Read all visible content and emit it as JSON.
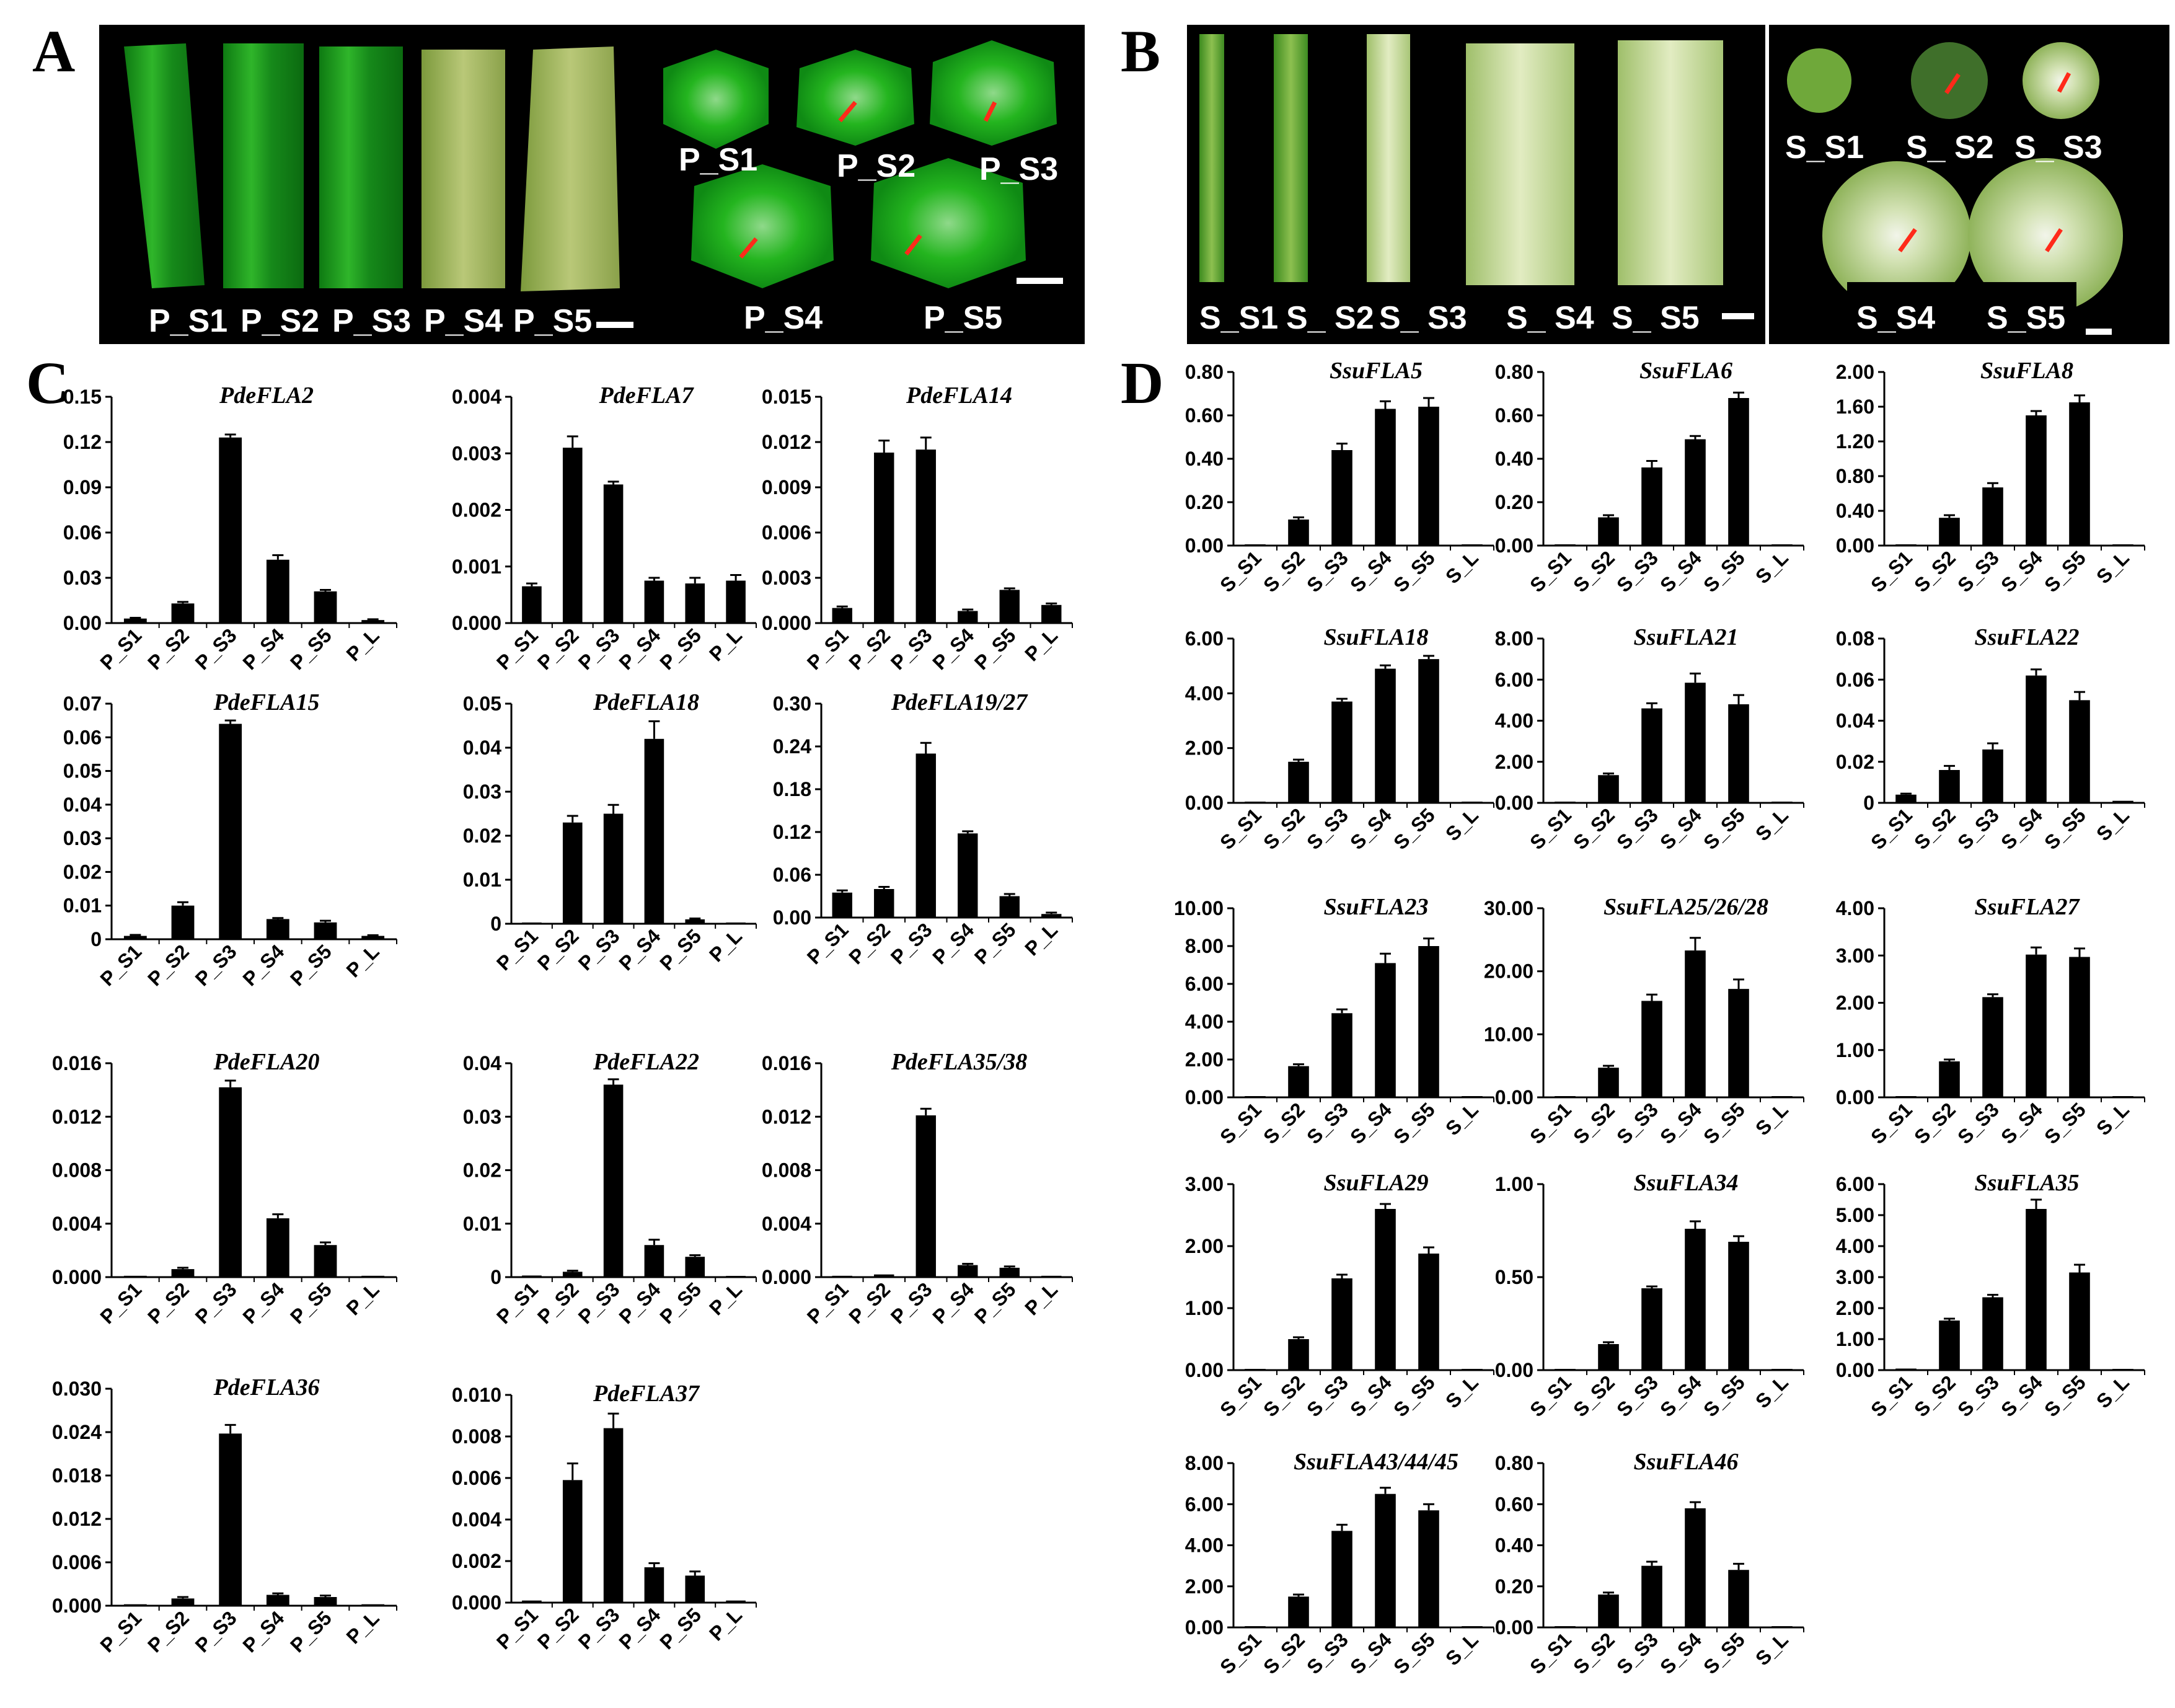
{
  "panels": {
    "A": {
      "letter": "A",
      "stem_labels": [
        "P_S1",
        "P_S2",
        "P_S3",
        "P_S4",
        "P_S5"
      ],
      "section_labels": [
        "P_S1",
        "P_S2",
        "P_S3",
        "P_S4",
        "P_S5"
      ]
    },
    "B": {
      "letter": "B",
      "stem_labels": [
        "S_S1",
        "S_ S2",
        "S_ S3",
        "S_ S4",
        "S_ S5"
      ],
      "section_labels": [
        "S_S1",
        "S_ S2",
        "S_ S3",
        "S_S4",
        "S_S5"
      ]
    },
    "C": {
      "letter": "C"
    },
    "D": {
      "letter": "D"
    }
  },
  "colors": {
    "bar": "#000000",
    "photo_background": "#000000",
    "poplar_green": "#1fa51f",
    "willow_green": "#c8dca0",
    "arrow": "#ff2a1a"
  },
  "chart_data": [
    {
      "panel": "C",
      "type": "bar",
      "title": "PdeFLA2",
      "categories": [
        "P_S1",
        "P_S2",
        "P_S3",
        "P_S4",
        "P_S5",
        "P_L"
      ],
      "values": [
        0.003,
        0.013,
        0.123,
        0.042,
        0.021,
        0.002
      ],
      "errors": [
        0.0005,
        0.001,
        0.002,
        0.003,
        0.001,
        0.0005
      ],
      "yticks": [
        "0.00",
        "0.03",
        "0.06",
        "0.09",
        "0.12",
        "0.15"
      ],
      "ylim": [
        0,
        0.15
      ]
    },
    {
      "panel": "C",
      "type": "bar",
      "title": "PdeFLA7",
      "categories": [
        "P_S1",
        "P_S2",
        "P_S3",
        "P_S4",
        "P_S5",
        "P_L"
      ],
      "values": [
        0.00065,
        0.0031,
        0.00245,
        0.00075,
        0.0007,
        0.00075
      ],
      "errors": [
        5e-05,
        0.0002,
        5e-05,
        5e-05,
        0.0001,
        0.0001
      ],
      "yticks": [
        "0.000",
        "0.001",
        "0.002",
        "0.003",
        "0.004"
      ],
      "ylim": [
        0,
        0.004
      ]
    },
    {
      "panel": "C",
      "type": "bar",
      "title": "PdeFLA14",
      "categories": [
        "P_S1",
        "P_S2",
        "P_S3",
        "P_S4",
        "P_S5",
        "P_L"
      ],
      "values": [
        0.001,
        0.0113,
        0.0115,
        0.0008,
        0.0022,
        0.0012
      ],
      "errors": [
        0.0001,
        0.0008,
        0.0008,
        0.0001,
        0.0001,
        0.0001
      ],
      "yticks": [
        "0.000",
        "0.003",
        "0.006",
        "0.009",
        "0.012",
        "0.015"
      ],
      "ylim": [
        0,
        0.015
      ]
    },
    {
      "panel": "C",
      "type": "bar",
      "title": "PdeFLA15",
      "categories": [
        "P_S1",
        "P_S2",
        "P_S3",
        "P_S4",
        "P_S5",
        "P_L"
      ],
      "values": [
        0.001,
        0.01,
        0.064,
        0.006,
        0.005,
        0.001
      ],
      "errors": [
        0.0003,
        0.001,
        0.001,
        0.0003,
        0.0005,
        0.0002
      ],
      "yticks": [
        "0",
        "0.01",
        "0.02",
        "0.03",
        "0.04",
        "0.05",
        "0.06",
        "0.07"
      ],
      "ylim": [
        0,
        0.07
      ]
    },
    {
      "panel": "C",
      "type": "bar",
      "title": "PdeFLA18",
      "categories": [
        "P_S1",
        "P_S2",
        "P_S3",
        "P_S4",
        "P_S5",
        "P_L"
      ],
      "values": [
        0.0002,
        0.023,
        0.025,
        0.042,
        0.001,
        0.0002
      ],
      "errors": [
        0,
        0.0015,
        0.002,
        0.004,
        0.0002,
        0
      ],
      "yticks": [
        "0",
        "0.01",
        "0.02",
        "0.03",
        "0.04",
        "0.05"
      ],
      "ylim": [
        0,
        0.05
      ]
    },
    {
      "panel": "C",
      "type": "bar",
      "title": "PdeFLA19/27",
      "categories": [
        "P_S1",
        "P_S2",
        "P_S3",
        "P_S4",
        "P_S5",
        "P_L"
      ],
      "values": [
        0.035,
        0.04,
        0.23,
        0.118,
        0.03,
        0.005
      ],
      "errors": [
        0.003,
        0.003,
        0.015,
        0.003,
        0.003,
        0.002
      ],
      "yticks": [
        "0.00",
        "0.06",
        "0.12",
        "0.18",
        "0.24",
        "0.30"
      ],
      "ylim": [
        0,
        0.3
      ]
    },
    {
      "panel": "C",
      "type": "bar",
      "title": "PdeFLA20",
      "categories": [
        "P_S1",
        "P_S2",
        "P_S3",
        "P_S4",
        "P_S5",
        "P_L"
      ],
      "values": [
        0.0001,
        0.0006,
        0.0142,
        0.0044,
        0.0024,
        0.0001
      ],
      "errors": [
        0,
        0.0001,
        0.0005,
        0.0003,
        0.0002,
        0
      ],
      "yticks": [
        "0.000",
        "0.004",
        "0.008",
        "0.012",
        "0.016"
      ],
      "ylim": [
        0,
        0.016
      ]
    },
    {
      "panel": "C",
      "type": "bar",
      "title": "PdeFLA22",
      "categories": [
        "P_S1",
        "P_S2",
        "P_S3",
        "P_S4",
        "P_S5",
        "P_L"
      ],
      "values": [
        0.0003,
        0.001,
        0.036,
        0.006,
        0.0038,
        0.0002
      ],
      "errors": [
        0,
        0.0002,
        0.001,
        0.001,
        0.0003,
        0
      ],
      "yticks": [
        "0",
        "0.01",
        "0.02",
        "0.03",
        "0.04"
      ],
      "ylim": [
        0,
        0.04
      ]
    },
    {
      "panel": "C",
      "type": "bar",
      "title": "PdeFLA35/38",
      "categories": [
        "P_S1",
        "P_S2",
        "P_S3",
        "P_S4",
        "P_S5",
        "P_L"
      ],
      "values": [
        0.0001,
        0.0002,
        0.0121,
        0.0009,
        0.0007,
        0.0001
      ],
      "errors": [
        0,
        0,
        0.0005,
        0.0001,
        0.0001,
        0
      ],
      "yticks": [
        "0.000",
        "0.004",
        "0.008",
        "0.012",
        "0.016"
      ],
      "ylim": [
        0,
        0.016
      ]
    },
    {
      "panel": "C",
      "type": "bar",
      "title": "PdeFLA36",
      "categories": [
        "P_S1",
        "P_S2",
        "P_S3",
        "P_S4",
        "P_S5",
        "P_L"
      ],
      "values": [
        0.0002,
        0.001,
        0.0238,
        0.0015,
        0.0012,
        0.0002
      ],
      "errors": [
        0,
        0.0002,
        0.0012,
        0.0002,
        0.0002,
        0
      ],
      "yticks": [
        "0.000",
        "0.006",
        "0.012",
        "0.018",
        "0.024",
        "0.030"
      ],
      "ylim": [
        0,
        0.03
      ]
    },
    {
      "panel": "C",
      "type": "bar",
      "title": "PdeFLA37",
      "categories": [
        "P_S1",
        "P_S2",
        "P_S3",
        "P_S4",
        "P_S5",
        "P_L"
      ],
      "values": [
        0.0001,
        0.0059,
        0.0084,
        0.0017,
        0.0013,
        0.0001
      ],
      "errors": [
        0,
        0.0008,
        0.0007,
        0.0002,
        0.0002,
        0
      ],
      "yticks": [
        "0.000",
        "0.002",
        "0.004",
        "0.006",
        "0.008",
        "0.010"
      ],
      "ylim": [
        0,
        0.01
      ]
    },
    {
      "panel": "D",
      "type": "bar",
      "title": "SsuFLA5",
      "categories": [
        "S_S1",
        "S_S2",
        "S_S3",
        "S_S4",
        "S_S5",
        "S_L"
      ],
      "values": [
        0.005,
        0.12,
        0.44,
        0.63,
        0.64,
        0.005
      ],
      "errors": [
        0,
        0.01,
        0.03,
        0.035,
        0.04,
        0
      ],
      "yticks": [
        "0.00",
        "0.20",
        "0.40",
        "0.60",
        "0.80"
      ],
      "ylim": [
        0,
        0.8
      ]
    },
    {
      "panel": "D",
      "type": "bar",
      "title": "SsuFLA6",
      "categories": [
        "S_S1",
        "S_S2",
        "S_S3",
        "S_S4",
        "S_S5",
        "S_L"
      ],
      "values": [
        0.005,
        0.13,
        0.36,
        0.49,
        0.68,
        0.005
      ],
      "errors": [
        0,
        0.01,
        0.03,
        0.015,
        0.025,
        0
      ],
      "yticks": [
        "0.00",
        "0.20",
        "0.40",
        "0.60",
        "0.80"
      ],
      "ylim": [
        0,
        0.8
      ]
    },
    {
      "panel": "D",
      "type": "bar",
      "title": "SsuFLA8",
      "categories": [
        "S_S1",
        "S_S2",
        "S_S3",
        "S_S4",
        "S_S5",
        "S_L"
      ],
      "values": [
        0.005,
        0.32,
        0.67,
        1.5,
        1.65,
        0.005
      ],
      "errors": [
        0,
        0.03,
        0.05,
        0.05,
        0.08,
        0
      ],
      "yticks": [
        "0.00",
        "0.40",
        "0.80",
        "1.20",
        "1.60",
        "2.00"
      ],
      "ylim": [
        0,
        2.0
      ]
    },
    {
      "panel": "D",
      "type": "bar",
      "title": "SsuFLA18",
      "categories": [
        "S_S1",
        "S_S2",
        "S_S3",
        "S_S4",
        "S_S5",
        "S_L"
      ],
      "values": [
        0.02,
        1.5,
        3.7,
        4.9,
        5.25,
        0.02
      ],
      "errors": [
        0,
        0.08,
        0.1,
        0.12,
        0.12,
        0
      ],
      "yticks": [
        "0.00",
        "2.00",
        "4.00",
        "6.00"
      ],
      "ylim": [
        0,
        6.0
      ]
    },
    {
      "panel": "D",
      "type": "bar",
      "title": "SsuFLA21",
      "categories": [
        "S_S1",
        "S_S2",
        "S_S3",
        "S_S4",
        "S_S5",
        "S_L"
      ],
      "values": [
        0.02,
        1.35,
        4.6,
        5.85,
        4.8,
        0.02
      ],
      "errors": [
        0,
        0.08,
        0.25,
        0.45,
        0.45,
        0
      ],
      "yticks": [
        "0.00",
        "2.00",
        "4.00",
        "6.00",
        "8.00"
      ],
      "ylim": [
        0,
        8.0
      ]
    },
    {
      "panel": "D",
      "type": "bar",
      "title": "SsuFLA22",
      "categories": [
        "S_S1",
        "S_S2",
        "S_S3",
        "S_S4",
        "S_S5",
        "S_L"
      ],
      "values": [
        0.004,
        0.016,
        0.026,
        0.062,
        0.05,
        0.001
      ],
      "errors": [
        0.0005,
        0.002,
        0.003,
        0.003,
        0.004,
        0
      ],
      "yticks": [
        "0",
        "0.02",
        "0.04",
        "0.06",
        "0.08"
      ],
      "ylim": [
        0,
        0.08
      ]
    },
    {
      "panel": "D",
      "type": "bar",
      "title": "SsuFLA23",
      "categories": [
        "S_S1",
        "S_S2",
        "S_S3",
        "S_S4",
        "S_S5",
        "S_L"
      ],
      "values": [
        0.02,
        1.65,
        4.45,
        7.1,
        8.0,
        0.02
      ],
      "errors": [
        0,
        0.1,
        0.2,
        0.5,
        0.4,
        0
      ],
      "yticks": [
        "0.00",
        "2.00",
        "4.00",
        "6.00",
        "8.00",
        "10.00"
      ],
      "ylim": [
        0,
        10.0
      ]
    },
    {
      "panel": "D",
      "type": "bar",
      "title": "SsuFLA25/26/28",
      "categories": [
        "S_S1",
        "S_S2",
        "S_S3",
        "S_S4",
        "S_S5",
        "S_L"
      ],
      "values": [
        0.05,
        4.7,
        15.3,
        23.3,
        17.2,
        0.05
      ],
      "errors": [
        0,
        0.3,
        1.0,
        2.0,
        1.5,
        0
      ],
      "yticks": [
        "0.00",
        "10.00",
        "20.00",
        "30.00"
      ],
      "ylim": [
        0,
        30.0
      ]
    },
    {
      "panel": "D",
      "type": "bar",
      "title": "SsuFLA27",
      "categories": [
        "S_S1",
        "S_S2",
        "S_S3",
        "S_S4",
        "S_S5",
        "S_L"
      ],
      "values": [
        0.01,
        0.76,
        2.12,
        3.02,
        2.97,
        0.01
      ],
      "errors": [
        0,
        0.04,
        0.06,
        0.15,
        0.18,
        0
      ],
      "yticks": [
        "0.00",
        "1.00",
        "2.00",
        "3.00",
        "4.00"
      ],
      "ylim": [
        0,
        4.0
      ]
    },
    {
      "panel": "D",
      "type": "bar",
      "title": "SsuFLA29",
      "categories": [
        "S_S1",
        "S_S2",
        "S_S3",
        "S_S4",
        "S_S5",
        "S_L"
      ],
      "values": [
        0.005,
        0.5,
        1.48,
        2.6,
        1.88,
        0.005
      ],
      "errors": [
        0,
        0.03,
        0.06,
        0.08,
        0.1,
        0
      ],
      "yticks": [
        "0.00",
        "1.00",
        "2.00",
        "3.00"
      ],
      "ylim": [
        0,
        3.0
      ]
    },
    {
      "panel": "D",
      "type": "bar",
      "title": "SsuFLA34",
      "categories": [
        "S_S1",
        "S_S2",
        "S_S3",
        "S_S4",
        "S_S5",
        "S_L"
      ],
      "values": [
        0.005,
        0.14,
        0.44,
        0.76,
        0.69,
        0.005
      ],
      "errors": [
        0,
        0.01,
        0.01,
        0.04,
        0.03,
        0
      ],
      "yticks": [
        "0.00",
        "0.50",
        "1.00"
      ],
      "ylim": [
        0,
        1.0
      ]
    },
    {
      "panel": "D",
      "type": "bar",
      "title": "SsuFLA35",
      "categories": [
        "S_S1",
        "S_S2",
        "S_S3",
        "S_S4",
        "S_S5",
        "S_L"
      ],
      "values": [
        0.05,
        1.6,
        2.35,
        5.2,
        3.15,
        0.02
      ],
      "errors": [
        0,
        0.06,
        0.08,
        0.3,
        0.25,
        0
      ],
      "yticks": [
        "0.00",
        "1.00",
        "2.00",
        "3.00",
        "4.00",
        "5.00",
        "6.00"
      ],
      "ylim": [
        0,
        6.0
      ]
    },
    {
      "panel": "D",
      "type": "bar",
      "title": "SsuFLA43/44/45",
      "categories": [
        "S_S1",
        "S_S2",
        "S_S3",
        "S_S4",
        "S_S5",
        "S_L"
      ],
      "values": [
        0.02,
        1.5,
        4.7,
        6.5,
        5.7,
        0.02
      ],
      "errors": [
        0,
        0.1,
        0.3,
        0.3,
        0.3,
        0
      ],
      "yticks": [
        "0.00",
        "2.00",
        "4.00",
        "6.00",
        "8.00"
      ],
      "ylim": [
        0,
        8.0
      ]
    },
    {
      "panel": "D",
      "type": "bar",
      "title": "SsuFLA46",
      "categories": [
        "S_S1",
        "S_S2",
        "S_S3",
        "S_S4",
        "S_S5",
        "S_L"
      ],
      "values": [
        0.005,
        0.16,
        0.3,
        0.58,
        0.28,
        0.005
      ],
      "errors": [
        0,
        0.01,
        0.02,
        0.03,
        0.03,
        0
      ],
      "yticks": [
        "0.00",
        "0.20",
        "0.40",
        "0.60",
        "0.80"
      ],
      "ylim": [
        0,
        0.8
      ]
    }
  ]
}
